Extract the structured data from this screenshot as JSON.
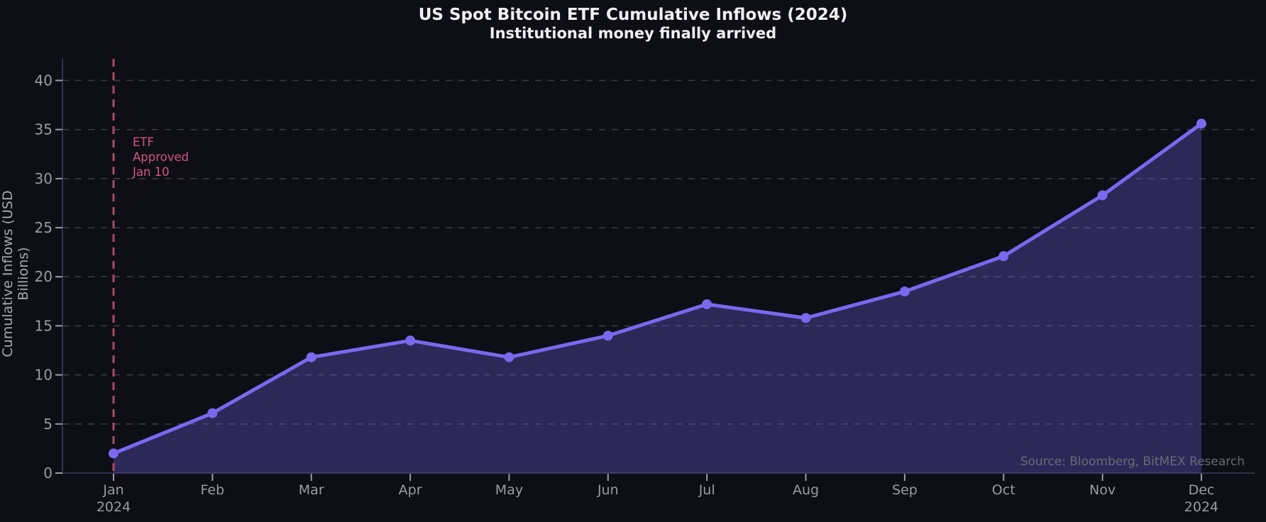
{
  "header": {
    "title": "US Spot Bitcoin ETF Cumulative Inflows (2024)",
    "subtitle": "Institutional money finally arrived"
  },
  "chart_data": {
    "type": "area",
    "title": "US Spot Bitcoin ETF Cumulative Inflows (2024)",
    "subtitle": "Institutional money finally arrived",
    "xlabel": "",
    "ylabel": "Cumulative Inflows (USD Billions)",
    "x": [
      "Jan",
      "Feb",
      "Mar",
      "Apr",
      "May",
      "Jun",
      "Jul",
      "Aug",
      "Sep",
      "Oct",
      "Nov",
      "Dec"
    ],
    "year_label": "2024",
    "year_positions": [
      0,
      11
    ],
    "series": [
      {
        "name": "Cumulative Inflows",
        "values": [
          2.0,
          6.1,
          11.8,
          13.5,
          11.8,
          14.0,
          17.2,
          15.8,
          18.5,
          22.1,
          28.3,
          35.6
        ]
      }
    ],
    "ylim": [
      0,
      42.2
    ],
    "yticks": [
      0,
      5,
      10,
      15,
      20,
      25,
      30,
      35,
      40
    ],
    "grid": true,
    "legend": false,
    "annotation": {
      "text": "ETF\nApproved\nJan 10",
      "event_month": "Jan",
      "event_line_style": "dashed-vertical"
    },
    "source": "Source: Bloomberg, BitMEX Research",
    "colors": {
      "background": "#0e0e17",
      "line": "#7b68ee",
      "marker": "#7b68ee",
      "fill": "rgba(123,104,238,0.30)",
      "grid": "#3a3a44",
      "spine": "#3d3d5c",
      "tick_text": "#9b9ba3",
      "title_text": "#f0f0f2",
      "event_line": "#aa4a66",
      "event_text": "#d4567e",
      "source_text": "#6a6a76"
    }
  }
}
